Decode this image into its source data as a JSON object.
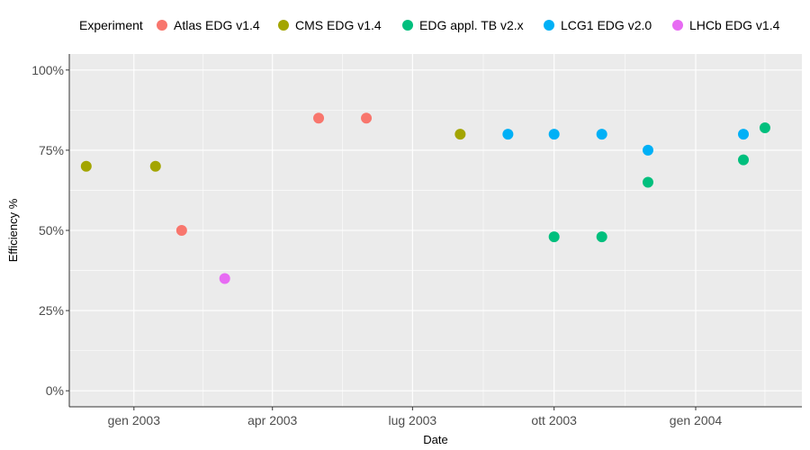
{
  "chart_data": {
    "type": "scatter",
    "xlabel": "Date",
    "ylabel": "Efficiency %",
    "x_ticks": [
      {
        "date": "2003-01-01",
        "label": "gen 2003"
      },
      {
        "date": "2003-04-01",
        "label": "apr 2003"
      },
      {
        "date": "2003-07-01",
        "label": "lug 2003"
      },
      {
        "date": "2003-10-01",
        "label": "ott 2003"
      },
      {
        "date": "2004-01-01",
        "label": "gen 2004"
      }
    ],
    "xlim": [
      "2002-11-20",
      "2004-03-10"
    ],
    "y_ticks": [
      {
        "value": 0,
        "label": "0%"
      },
      {
        "value": 25,
        "label": "25%"
      },
      {
        "value": 50,
        "label": "50%"
      },
      {
        "value": 75,
        "label": "75%"
      },
      {
        "value": 100,
        "label": "100%"
      }
    ],
    "ylim": [
      -5,
      105
    ],
    "grid": true,
    "legend": {
      "title": "Experiment",
      "position": "top"
    },
    "series": [
      {
        "name": "Atlas EDG v1.4",
        "color": "#F8766D",
        "points": [
          {
            "x": "2003-02-01",
            "y": 50
          },
          {
            "x": "2003-05-01",
            "y": 85
          },
          {
            "x": "2003-06-01",
            "y": 85
          }
        ]
      },
      {
        "name": "CMS EDG v1.4",
        "color": "#A3A500",
        "points": [
          {
            "x": "2002-12-01",
            "y": 70
          },
          {
            "x": "2003-01-15",
            "y": 70
          },
          {
            "x": "2003-08-01",
            "y": 80
          }
        ]
      },
      {
        "name": "EDG appl. TB v2.x",
        "color": "#00BF7D",
        "points": [
          {
            "x": "2003-10-01",
            "y": 48
          },
          {
            "x": "2003-11-01",
            "y": 48
          },
          {
            "x": "2003-12-01",
            "y": 65
          },
          {
            "x": "2004-02-01",
            "y": 72
          },
          {
            "x": "2004-02-15",
            "y": 82
          }
        ]
      },
      {
        "name": "LCG1 EDG v2.0",
        "color": "#00B0F6",
        "points": [
          {
            "x": "2003-09-01",
            "y": 80
          },
          {
            "x": "2003-10-01",
            "y": 80
          },
          {
            "x": "2003-11-01",
            "y": 80
          },
          {
            "x": "2003-12-01",
            "y": 75
          },
          {
            "x": "2004-02-01",
            "y": 80
          }
        ]
      },
      {
        "name": "LHCb EDG v1.4",
        "color": "#E76BF3",
        "points": [
          {
            "x": "2003-03-01",
            "y": 35
          }
        ]
      }
    ]
  }
}
